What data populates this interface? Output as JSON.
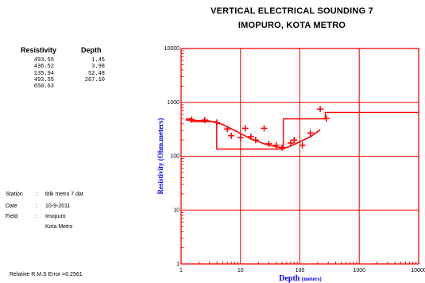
{
  "chart_data": {
    "type": "line",
    "title": "VERTICAL ELECTRICAL SOUNDING 7",
    "subtitle": "IMOPURO, KOTA METRO",
    "xlabel": "Depth",
    "xlabel_unit": "(meters)",
    "ylabel": "Resistivity (Ohm.meters)",
    "x_scale": "log",
    "y_scale": "log",
    "xlim": [
      1,
      10000
    ],
    "ylim": [
      1,
      10000
    ],
    "x_ticks": [
      "1",
      "10",
      "100",
      "1000",
      "10000"
    ],
    "y_ticks": [
      "1",
      "10",
      "100",
      "1000",
      "10000"
    ],
    "grid": true,
    "series": [
      {
        "type": "scatter",
        "marker": "+",
        "points": [
          [
            1.5,
            480
          ],
          [
            2.5,
            470
          ],
          [
            4,
            420
          ],
          [
            6,
            320
          ],
          [
            7,
            240
          ],
          [
            10,
            220
          ],
          [
            12,
            330
          ],
          [
            15,
            230
          ],
          [
            18,
            200
          ],
          [
            25,
            330
          ],
          [
            30,
            170
          ],
          [
            40,
            160
          ],
          [
            50,
            145
          ],
          [
            70,
            175
          ],
          [
            80,
            200
          ],
          [
            110,
            160
          ],
          [
            150,
            270
          ],
          [
            220,
            750
          ],
          [
            280,
            500
          ]
        ]
      },
      {
        "type": "line",
        "points": [
          [
            1.2,
            470
          ],
          [
            3,
            450
          ],
          [
            5,
            390
          ],
          [
            8,
            300
          ],
          [
            15,
            210
          ],
          [
            25,
            170
          ],
          [
            40,
            150
          ],
          [
            55,
            140
          ],
          [
            70,
            155
          ],
          [
            100,
            185
          ],
          [
            150,
            230
          ],
          [
            220,
            310
          ]
        ]
      },
      {
        "type": "step",
        "points": [
          [
            1.2,
            493.55
          ],
          [
            1.45,
            493.55
          ],
          [
            1.45,
            436.52
          ],
          [
            3.98,
            436.52
          ],
          [
            3.98,
            135.94
          ],
          [
            52.48,
            135.94
          ],
          [
            52.48,
            493.55
          ],
          [
            267.1,
            493.55
          ],
          [
            267.1,
            650.63
          ],
          [
            10000,
            650.63
          ]
        ]
      }
    ],
    "color": "#ff0000"
  },
  "table": {
    "headers": [
      "Resistivity",
      "Depth"
    ],
    "resistivity": [
      "493.55",
      "436.52",
      "135.94",
      "493.55",
      "650.63"
    ],
    "depth": [
      "1.45",
      "3.98",
      "52.48",
      "267.10"
    ]
  },
  "info": {
    "station_label": "Station",
    "station_value": "titik metro 7.dat",
    "date_label": "Date",
    "date_value": "10-9-2011",
    "field_label": "Field",
    "field_value_1": "Imopuro",
    "field_value_2": "Kota Metro",
    "separator": ":"
  },
  "rms_text": "Relative R.M.S Error =0.2561"
}
